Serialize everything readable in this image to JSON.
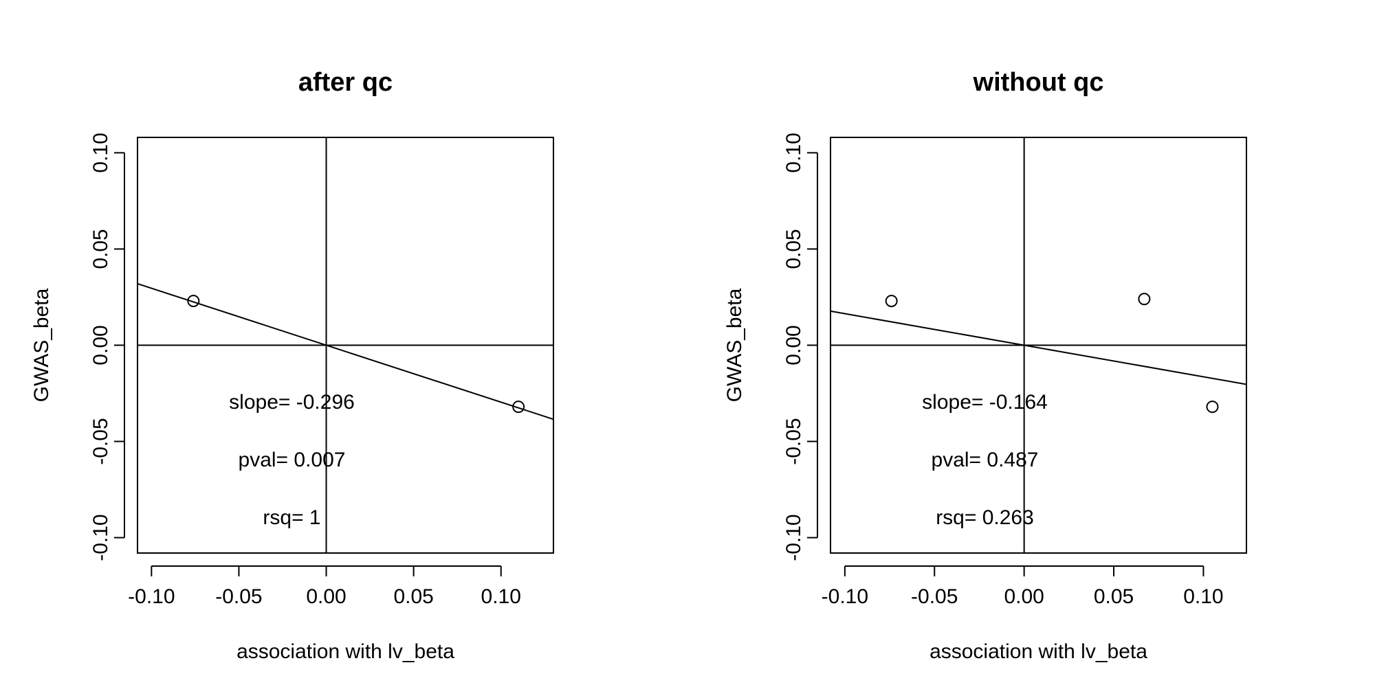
{
  "chart_data": [
    {
      "type": "scatter",
      "title": "after qc",
      "xlabel": "association with lv_beta",
      "ylabel": "GWAS_beta",
      "xlim": [
        -0.108,
        0.13
      ],
      "ylim": [
        -0.108,
        0.108
      ],
      "xticks": [
        -0.1,
        -0.05,
        0.0,
        0.05,
        0.1
      ],
      "xtick_labels": [
        "-0.10",
        "-0.05",
        "0.00",
        "0.05",
        "0.10"
      ],
      "yticks": [
        -0.1,
        -0.05,
        0.0,
        0.05,
        0.1
      ],
      "ytick_labels": [
        "-0.10",
        "-0.05",
        "0.00",
        "0.05",
        "0.10"
      ],
      "grid": false,
      "points": [
        {
          "x": -0.076,
          "y": 0.023
        },
        {
          "x": 0.11,
          "y": -0.032
        }
      ],
      "fit_line": {
        "slope": -0.296,
        "intercept": 0
      },
      "reference_lines": {
        "x": 0,
        "y": 0
      },
      "annotations": [
        "slope= -0.296",
        "pval= 0.007",
        "rsq= 1"
      ]
    },
    {
      "type": "scatter",
      "title": "without qc",
      "xlabel": "association with lv_beta",
      "ylabel": "GWAS_beta",
      "xlim": [
        -0.108,
        0.124
      ],
      "ylim": [
        -0.108,
        0.108
      ],
      "xticks": [
        -0.1,
        -0.05,
        0.0,
        0.05,
        0.1
      ],
      "xtick_labels": [
        "-0.10",
        "-0.05",
        "0.00",
        "0.05",
        "0.10"
      ],
      "yticks": [
        -0.1,
        -0.05,
        0.0,
        0.05,
        0.1
      ],
      "ytick_labels": [
        "-0.10",
        "-0.05",
        "0.00",
        "0.05",
        "0.10"
      ],
      "grid": false,
      "points": [
        {
          "x": -0.074,
          "y": 0.023
        },
        {
          "x": 0.067,
          "y": 0.024
        },
        {
          "x": 0.105,
          "y": -0.032
        }
      ],
      "fit_line": {
        "slope": -0.164,
        "intercept": 0
      },
      "reference_lines": {
        "x": 0,
        "y": 0
      },
      "annotations": [
        "slope= -0.164",
        "pval= 0.487",
        "rsq= 0.263"
      ]
    }
  ]
}
